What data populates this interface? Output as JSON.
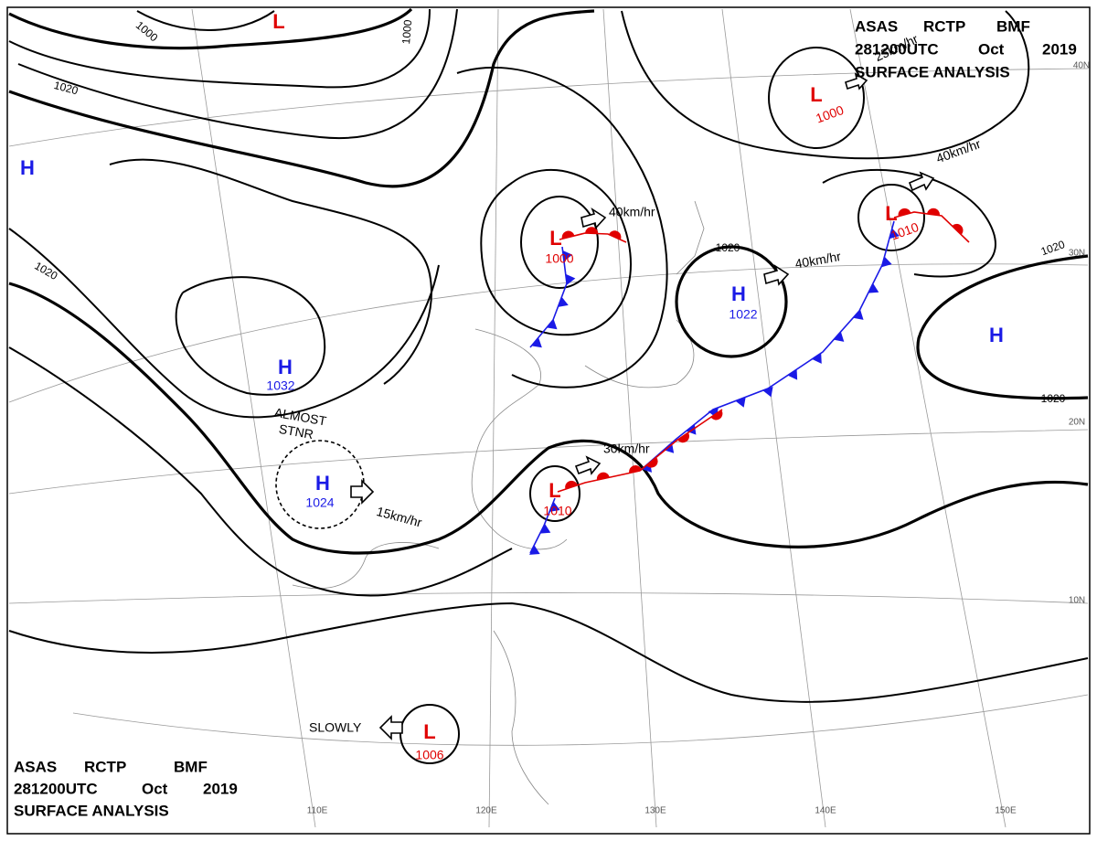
{
  "header": {
    "product": "ASAS",
    "station": "RCTP",
    "office": "BMF",
    "time": "281200UTC",
    "month": "Oct",
    "year": "2019",
    "name": "SURFACE ANALYSIS"
  },
  "centers": [
    {
      "type": "H"
    },
    {
      "type": "L"
    },
    {
      "type": "L",
      "pressure": 1000
    },
    {
      "type": "L",
      "pressure": 1000
    },
    {
      "type": "H",
      "pressure": 1032
    },
    {
      "type": "H",
      "pressure": 1024
    },
    {
      "type": "H",
      "pressure": 1022
    },
    {
      "type": "L",
      "pressure": 1010
    },
    {
      "type": "L",
      "pressure": 1010
    },
    {
      "type": "H"
    },
    {
      "type": "L",
      "pressure": 1006
    }
  ],
  "isobar_labels": [
    1000,
    1000,
    1020,
    1020,
    1020,
    1020,
    1020
  ],
  "movements": [
    "40km/hr",
    "40km/hr",
    "40km/hr",
    "25km/hr",
    "30km/hr",
    "15km/hr",
    "SLOWLY"
  ],
  "annotation": [
    "ALMOST",
    "STNR"
  ],
  "longitudes": [
    "110E",
    "120E",
    "130E",
    "140E",
    "150E"
  ],
  "latitudes": [
    "40N",
    "30N",
    "20N",
    "10N"
  ]
}
